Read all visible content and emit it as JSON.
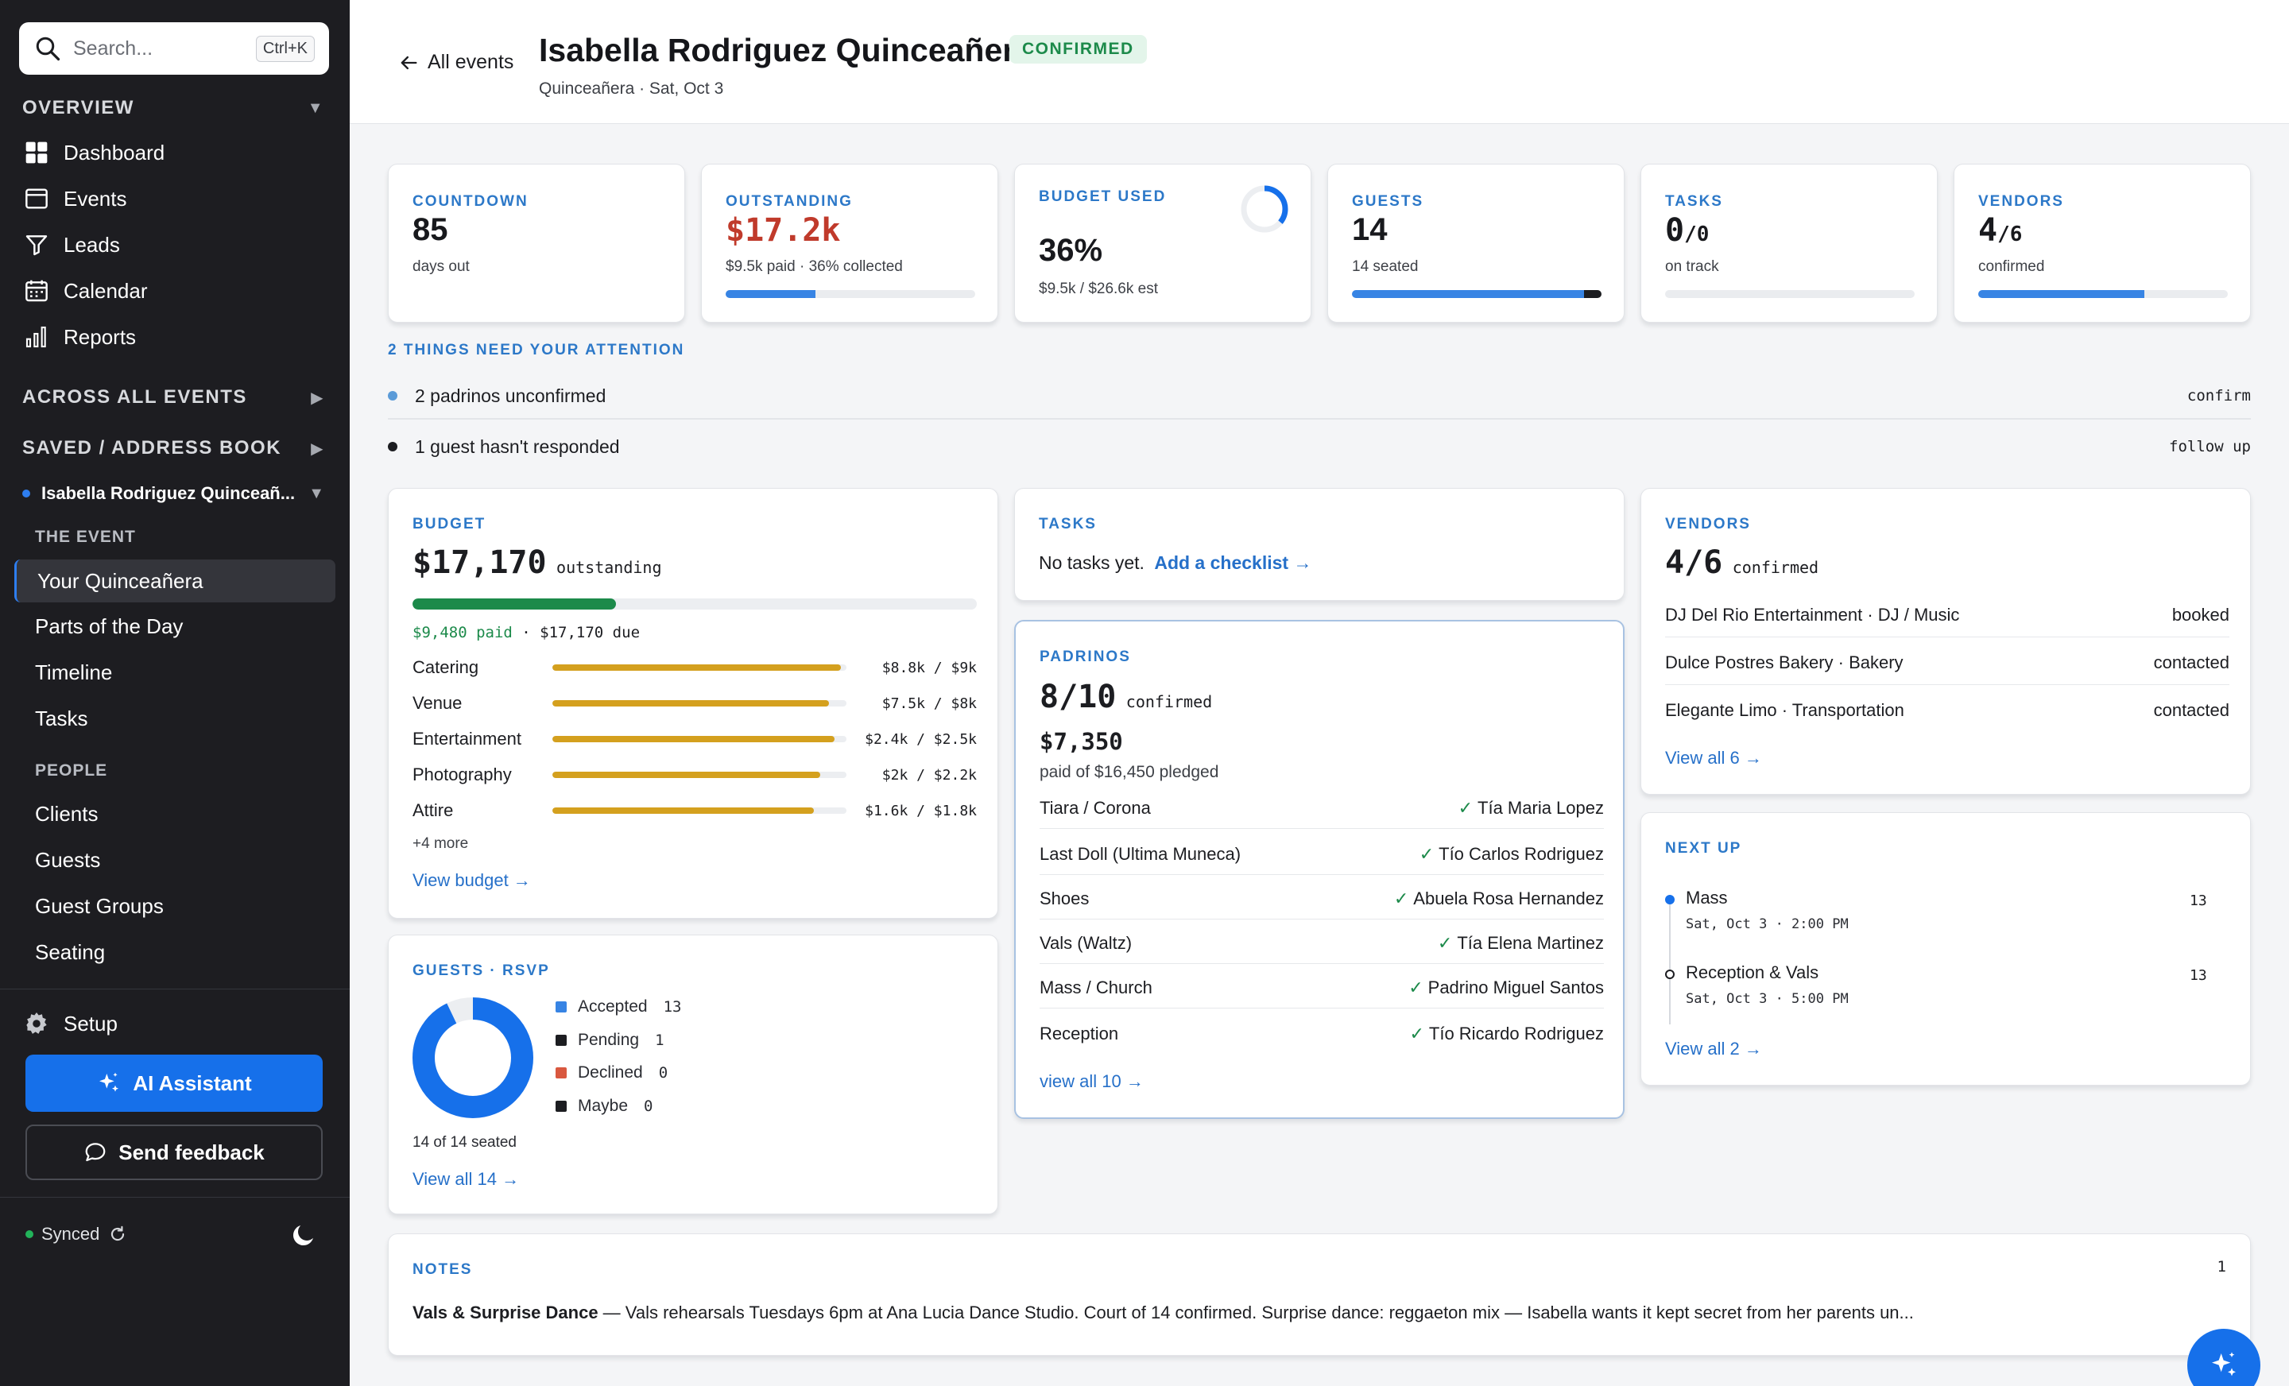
{
  "sidebar": {
    "search": {
      "placeholder": "Search...",
      "shortcut": "Ctrl+K"
    },
    "overview": {
      "heading": "OVERVIEW",
      "items": [
        {
          "label": "Dashboard",
          "icon": "grid-icon"
        },
        {
          "label": "Events",
          "icon": "calendar-list-icon"
        },
        {
          "label": "Leads",
          "icon": "funnel-icon"
        },
        {
          "label": "Calendar",
          "icon": "calendar-icon"
        },
        {
          "label": "Reports",
          "icon": "bar-chart-icon"
        }
      ]
    },
    "across_all_events": "ACROSS ALL EVENTS",
    "saved": "SAVED / ADDRESS BOOK",
    "event": {
      "name": "Isabella Rodriguez Quinceañ...",
      "the_event_heading": "THE EVENT",
      "the_event_items": [
        "Your Quinceañera",
        "Parts of the Day",
        "Timeline",
        "Tasks"
      ],
      "people_heading": "PEOPLE",
      "people_items": [
        "Clients",
        "Guests",
        "Guest Groups",
        "Seating"
      ]
    },
    "setup": "Setup",
    "ai_assistant": "AI Assistant",
    "send_feedback": "Send feedback",
    "synced": "Synced"
  },
  "header": {
    "back": "All events",
    "title": "Isabella Rodriguez Quinceañera",
    "badge": "CONFIRMED",
    "subtitle": "Quinceañera · Sat, Oct 3"
  },
  "stats": {
    "countdown": {
      "label": "COUNTDOWN",
      "value": "85",
      "note": "days out"
    },
    "outstanding": {
      "label": "OUTSTANDING",
      "value": "$17.2k",
      "note": "$9.5k paid · 36% collected",
      "progress": 0.36
    },
    "budget_used": {
      "label": "BUDGET USED",
      "value": "36%",
      "note": "$9.5k / $26.6k est",
      "progress": 0.36
    },
    "guests": {
      "label": "GUESTS",
      "value": "14",
      "note": "14 seated",
      "progress": 1.0
    },
    "tasks": {
      "label": "TASKS",
      "value": "0",
      "value_sub": "/0",
      "note": "on track",
      "progress": 0
    },
    "vendors": {
      "label": "VENDORS",
      "value": "4",
      "value_sub": "/6",
      "note": "confirmed",
      "progress": 0.667
    }
  },
  "attention": {
    "heading": "2 THINGS NEED YOUR ATTENTION",
    "items": [
      {
        "text": "2 padrinos unconfirmed",
        "action": "confirm",
        "color": "#5b9bd8"
      },
      {
        "text": "1 guest hasn't responded",
        "action": "follow up",
        "color": "#1c1d21"
      }
    ]
  },
  "budget": {
    "label": "BUDGET",
    "amount": "$17,170",
    "amount_suffix": "outstanding",
    "paid_progress": 0.36,
    "paid": "$9,480 paid",
    "due": "· $17,170 due",
    "categories": [
      {
        "name": "Catering",
        "amount": "$8.8k / $9k",
        "progress": 0.98
      },
      {
        "name": "Venue",
        "amount": "$7.5k / $8k",
        "progress": 0.94
      },
      {
        "name": "Entertainment",
        "amount": "$2.4k / $2.5k",
        "progress": 0.96
      },
      {
        "name": "Photography",
        "amount": "$2k / $2.2k",
        "progress": 0.91
      },
      {
        "name": "Attire",
        "amount": "$1.6k / $1.8k",
        "progress": 0.89
      }
    ],
    "more": "+4 more",
    "link": "View budget →"
  },
  "guests_rsvp": {
    "label": "GUESTS · RSVP",
    "legend": [
      {
        "name": "Accepted",
        "count": "13",
        "color": "#3784e4"
      },
      {
        "name": "Pending",
        "count": "1",
        "color": "#1c1d21"
      },
      {
        "name": "Declined",
        "count": "0",
        "color": "#d9583f"
      },
      {
        "name": "Maybe",
        "count": "0",
        "color": "#1c1d21"
      }
    ],
    "seated": "14 of 14 seated",
    "link": "View all 14 →"
  },
  "tasks_panel": {
    "label": "TASKS",
    "empty": "No tasks yet.",
    "link": "Add a checklist →"
  },
  "padrinos": {
    "label": "PADRINOS",
    "count": "8/10",
    "count_suffix": "confirmed",
    "amount": "$7,350",
    "pledged": "paid of $16,450 pledged",
    "rows": [
      {
        "item": "Tiara / Corona",
        "name": "Tía Maria Lopez"
      },
      {
        "item": "Last Doll (Ultima Muneca)",
        "name": "Tío Carlos Rodriguez"
      },
      {
        "item": "Shoes",
        "name": "Abuela Rosa Hernandez"
      },
      {
        "item": "Vals (Waltz)",
        "name": "Tía Elena Martinez"
      },
      {
        "item": "Mass / Church",
        "name": "Padrino Miguel Santos"
      },
      {
        "item": "Reception",
        "name": "Tío Ricardo Rodriguez"
      }
    ],
    "check": "✓",
    "link": "view all 10 →"
  },
  "vendors_panel": {
    "label": "VENDORS",
    "count": "4/6",
    "count_suffix": "confirmed",
    "rows": [
      {
        "name": "DJ Del Rio Entertainment · DJ / Music",
        "status": "booked"
      },
      {
        "name": "Dulce Postres Bakery · Bakery",
        "status": "contacted"
      },
      {
        "name": "Elegante Limo · Transportation",
        "status": "contacted"
      }
    ],
    "link": "View all 6 →"
  },
  "next_up": {
    "label": "NEXT UP",
    "items": [
      {
        "name": "Mass",
        "time": "Sat, Oct 3 · 2:00 PM",
        "count": "13"
      },
      {
        "name": "Reception & Vals",
        "time": "Sat, Oct 3 · 5:00 PM",
        "count": "13"
      }
    ],
    "link": "View all 2 →"
  },
  "notes": {
    "label": "NOTES",
    "count": "1",
    "title": "Vals & Surprise Dance",
    "body": " — Vals rehearsals Tuesdays 6pm at Ana Lucia Dance Studio. Court of 14 confirmed. Surprise dance: reggaeton mix — Isabella wants it kept secret from her parents un..."
  }
}
